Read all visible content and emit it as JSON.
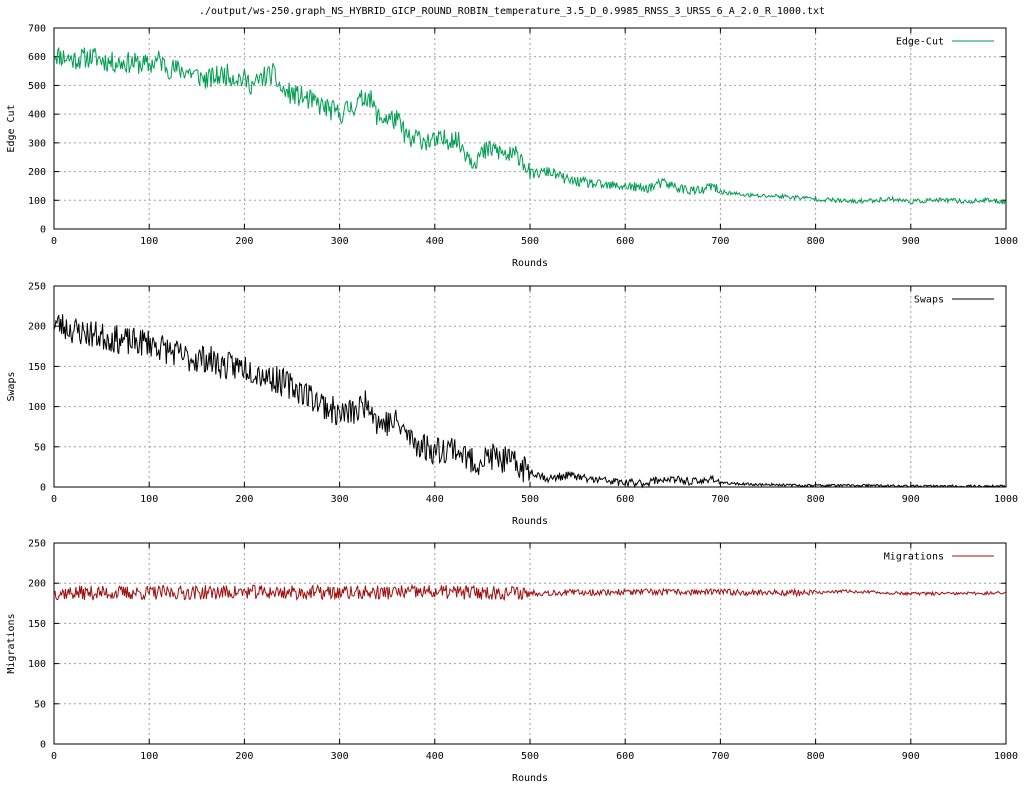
{
  "title": "./output/ws-250.graph_NS_HYBRID_GICP_ROUND_ROBIN_temperature_3.5_D_0.9985_RNSS_3_URSS_6_A_2.0_R_1000.txt",
  "chart_data": [
    {
      "type": "line",
      "xlabel": "Rounds",
      "ylabel": "Edge Cut",
      "xlim": [
        0,
        1000
      ],
      "ylim": [
        0,
        700
      ],
      "xticks": [
        0,
        100,
        200,
        300,
        400,
        500,
        600,
        700,
        800,
        900,
        1000
      ],
      "yticks": [
        0,
        100,
        200,
        300,
        400,
        500,
        600,
        700
      ],
      "grid": true,
      "legend_position": "top-right",
      "series": [
        {
          "name": "Edge-Cut",
          "color": "#009e50",
          "x": [
            0,
            20,
            40,
            60,
            80,
            100,
            110,
            120,
            140,
            160,
            180,
            200,
            210,
            220,
            230,
            240,
            260,
            280,
            300,
            320,
            330,
            340,
            360,
            375,
            380,
            400,
            420,
            440,
            460,
            480,
            490,
            500,
            520,
            540,
            560,
            580,
            600,
            620,
            640,
            660,
            680,
            690,
            700,
            720,
            740,
            760,
            780,
            800,
            820,
            840,
            860,
            880,
            900,
            920,
            940,
            960,
            980,
            1000
          ],
          "y": [
            610,
            590,
            600,
            580,
            580,
            570,
            590,
            560,
            550,
            520,
            540,
            520,
            500,
            530,
            540,
            480,
            460,
            430,
            400,
            440,
            470,
            390,
            380,
            300,
            320,
            300,
            320,
            240,
            280,
            250,
            260,
            190,
            200,
            170,
            160,
            150,
            150,
            140,
            160,
            140,
            130,
            150,
            130,
            120,
            115,
            115,
            110,
            105,
            100,
            95,
            100,
            105,
            95,
            100,
            100,
            95,
            100,
            95
          ]
        }
      ]
    },
    {
      "type": "line",
      "xlabel": "Rounds",
      "ylabel": "Swaps",
      "xlim": [
        0,
        1000
      ],
      "ylim": [
        0,
        250
      ],
      "xticks": [
        0,
        100,
        200,
        300,
        400,
        500,
        600,
        700,
        800,
        900,
        1000
      ],
      "yticks": [
        0,
        50,
        100,
        150,
        200,
        250
      ],
      "grid": true,
      "legend_position": "top-right",
      "series": [
        {
          "name": "Swaps",
          "color": "#000000",
          "x": [
            0,
            20,
            40,
            60,
            80,
            100,
            120,
            140,
            160,
            180,
            200,
            220,
            240,
            260,
            280,
            300,
            320,
            330,
            340,
            360,
            375,
            380,
            400,
            420,
            440,
            460,
            480,
            500,
            520,
            540,
            560,
            580,
            600,
            620,
            640,
            660,
            680,
            690,
            700,
            720,
            740,
            760,
            780,
            800,
            850,
            900,
            950,
            1000
          ],
          "y": [
            205,
            195,
            190,
            185,
            180,
            180,
            170,
            160,
            160,
            150,
            150,
            140,
            130,
            120,
            105,
            90,
            95,
            110,
            80,
            80,
            60,
            55,
            45,
            50,
            30,
            38,
            30,
            20,
            10,
            15,
            10,
            8,
            5,
            5,
            10,
            8,
            6,
            12,
            5,
            4,
            3,
            3,
            2,
            2,
            2,
            1,
            1,
            1
          ]
        }
      ]
    },
    {
      "type": "line",
      "xlabel": "Rounds",
      "ylabel": "Migrations",
      "xlim": [
        0,
        1000
      ],
      "ylim": [
        0,
        250
      ],
      "xticks": [
        0,
        100,
        200,
        300,
        400,
        500,
        600,
        700,
        800,
        900,
        1000
      ],
      "yticks": [
        0,
        50,
        100,
        150,
        200,
        250
      ],
      "grid": true,
      "legend_position": "top-right",
      "series": [
        {
          "name": "Migrations",
          "color": "#a01010",
          "x": [
            0,
            100,
            200,
            300,
            400,
            500,
            600,
            700,
            800,
            830,
            900,
            950,
            1000
          ],
          "y": [
            188,
            188,
            189,
            188,
            189,
            188,
            189,
            189,
            188,
            190,
            187,
            187,
            188
          ]
        }
      ]
    }
  ]
}
